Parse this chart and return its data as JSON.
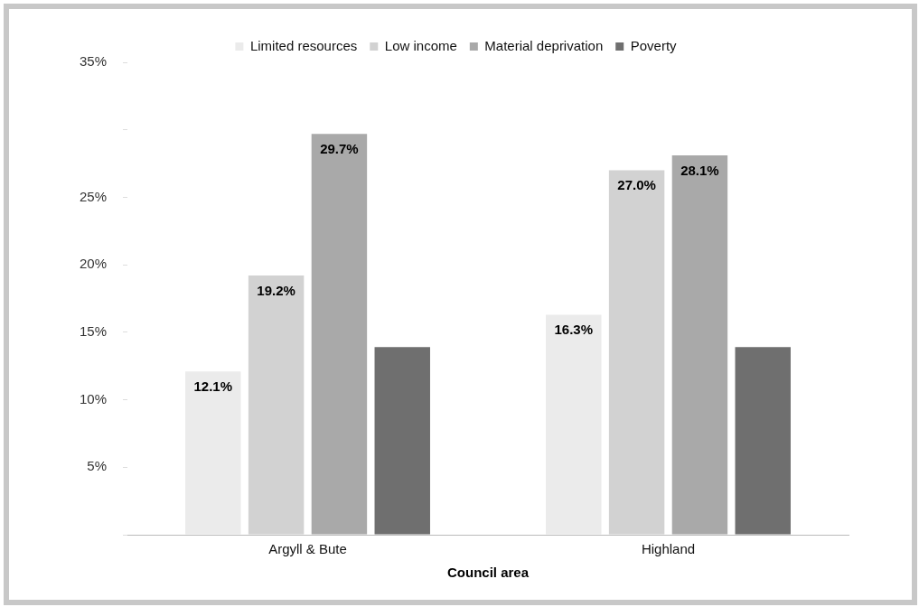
{
  "chart_data": {
    "type": "bar",
    "xlabel": "Council area",
    "categories": [
      "Argyll & Bute",
      "Highland"
    ],
    "series": [
      {
        "name": "Limited resources",
        "color": "#ebebeb",
        "values": [
          12.1,
          16.3
        ],
        "value_labels": [
          "12.1%",
          "16.3%"
        ]
      },
      {
        "name": "Low income",
        "color": "#d2d2d2",
        "values": [
          19.2,
          27.0
        ],
        "value_labels": [
          "19.2%",
          "27.0%"
        ]
      },
      {
        "name": "Material deprivation",
        "color": "#a9a9a9",
        "values": [
          29.7,
          28.1
        ],
        "value_labels": [
          "29.7%",
          "28.1%"
        ]
      },
      {
        "name": "Poverty",
        "color": "#6f6f6f",
        "values": [
          13.9,
          13.9
        ],
        "value_labels": [
          null,
          null
        ]
      }
    ],
    "ylim": [
      0,
      35
    ],
    "yticks": [
      {
        "value": 0,
        "label": null
      },
      {
        "value": 5,
        "label": "5%"
      },
      {
        "value": 10,
        "label": "10%"
      },
      {
        "value": 15,
        "label": "15%"
      },
      {
        "value": 20,
        "label": "20%"
      },
      {
        "value": 25,
        "label": "25%"
      },
      {
        "value": 30,
        "label": null
      },
      {
        "value": 35,
        "label": "35%"
      }
    ],
    "grid": false,
    "legend": "top"
  }
}
